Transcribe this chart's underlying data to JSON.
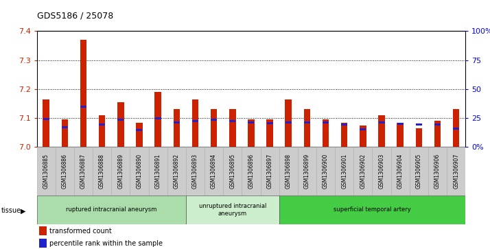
{
  "title": "GDS5186 / 25078",
  "samples": [
    "GSM1306885",
    "GSM1306886",
    "GSM1306887",
    "GSM1306888",
    "GSM1306889",
    "GSM1306890",
    "GSM1306891",
    "GSM1306892",
    "GSM1306893",
    "GSM1306894",
    "GSM1306895",
    "GSM1306896",
    "GSM1306897",
    "GSM1306898",
    "GSM1306899",
    "GSM1306900",
    "GSM1306901",
    "GSM1306902",
    "GSM1306903",
    "GSM1306904",
    "GSM1306905",
    "GSM1306906",
    "GSM1306907"
  ],
  "red_values": [
    7.165,
    7.095,
    7.37,
    7.11,
    7.155,
    7.083,
    7.19,
    7.13,
    7.165,
    7.13,
    7.13,
    7.095,
    7.095,
    7.165,
    7.13,
    7.095,
    7.083,
    7.075,
    7.11,
    7.083,
    7.065,
    7.09,
    7.13
  ],
  "blue_positions": [
    7.092,
    7.065,
    7.135,
    7.075,
    7.09,
    7.055,
    7.095,
    7.08,
    7.085,
    7.09,
    7.085,
    7.082,
    7.078,
    7.08,
    7.08,
    7.08,
    7.073,
    7.058,
    7.08,
    7.076,
    7.075,
    7.075,
    7.06
  ],
  "groups": [
    {
      "label": "ruptured intracranial aneurysm",
      "start": 0,
      "end": 8,
      "color": "#aaddaa"
    },
    {
      "label": "unruptured intracranial\naneurysm",
      "start": 8,
      "end": 13,
      "color": "#cceecc"
    },
    {
      "label": "superficial temporal artery",
      "start": 13,
      "end": 23,
      "color": "#44cc44"
    }
  ],
  "ylim": [
    7.0,
    7.4
  ],
  "yticks": [
    7.0,
    7.1,
    7.2,
    7.3,
    7.4
  ],
  "right_yticks": [
    0,
    25,
    50,
    75,
    100
  ],
  "right_ytick_labels": [
    "0%",
    "25",
    "50",
    "75",
    "100%"
  ],
  "bar_width": 0.35,
  "red_color": "#cc2200",
  "blue_color": "#2222cc",
  "xtick_bg": "#cccccc",
  "plot_bg": "#ffffff"
}
